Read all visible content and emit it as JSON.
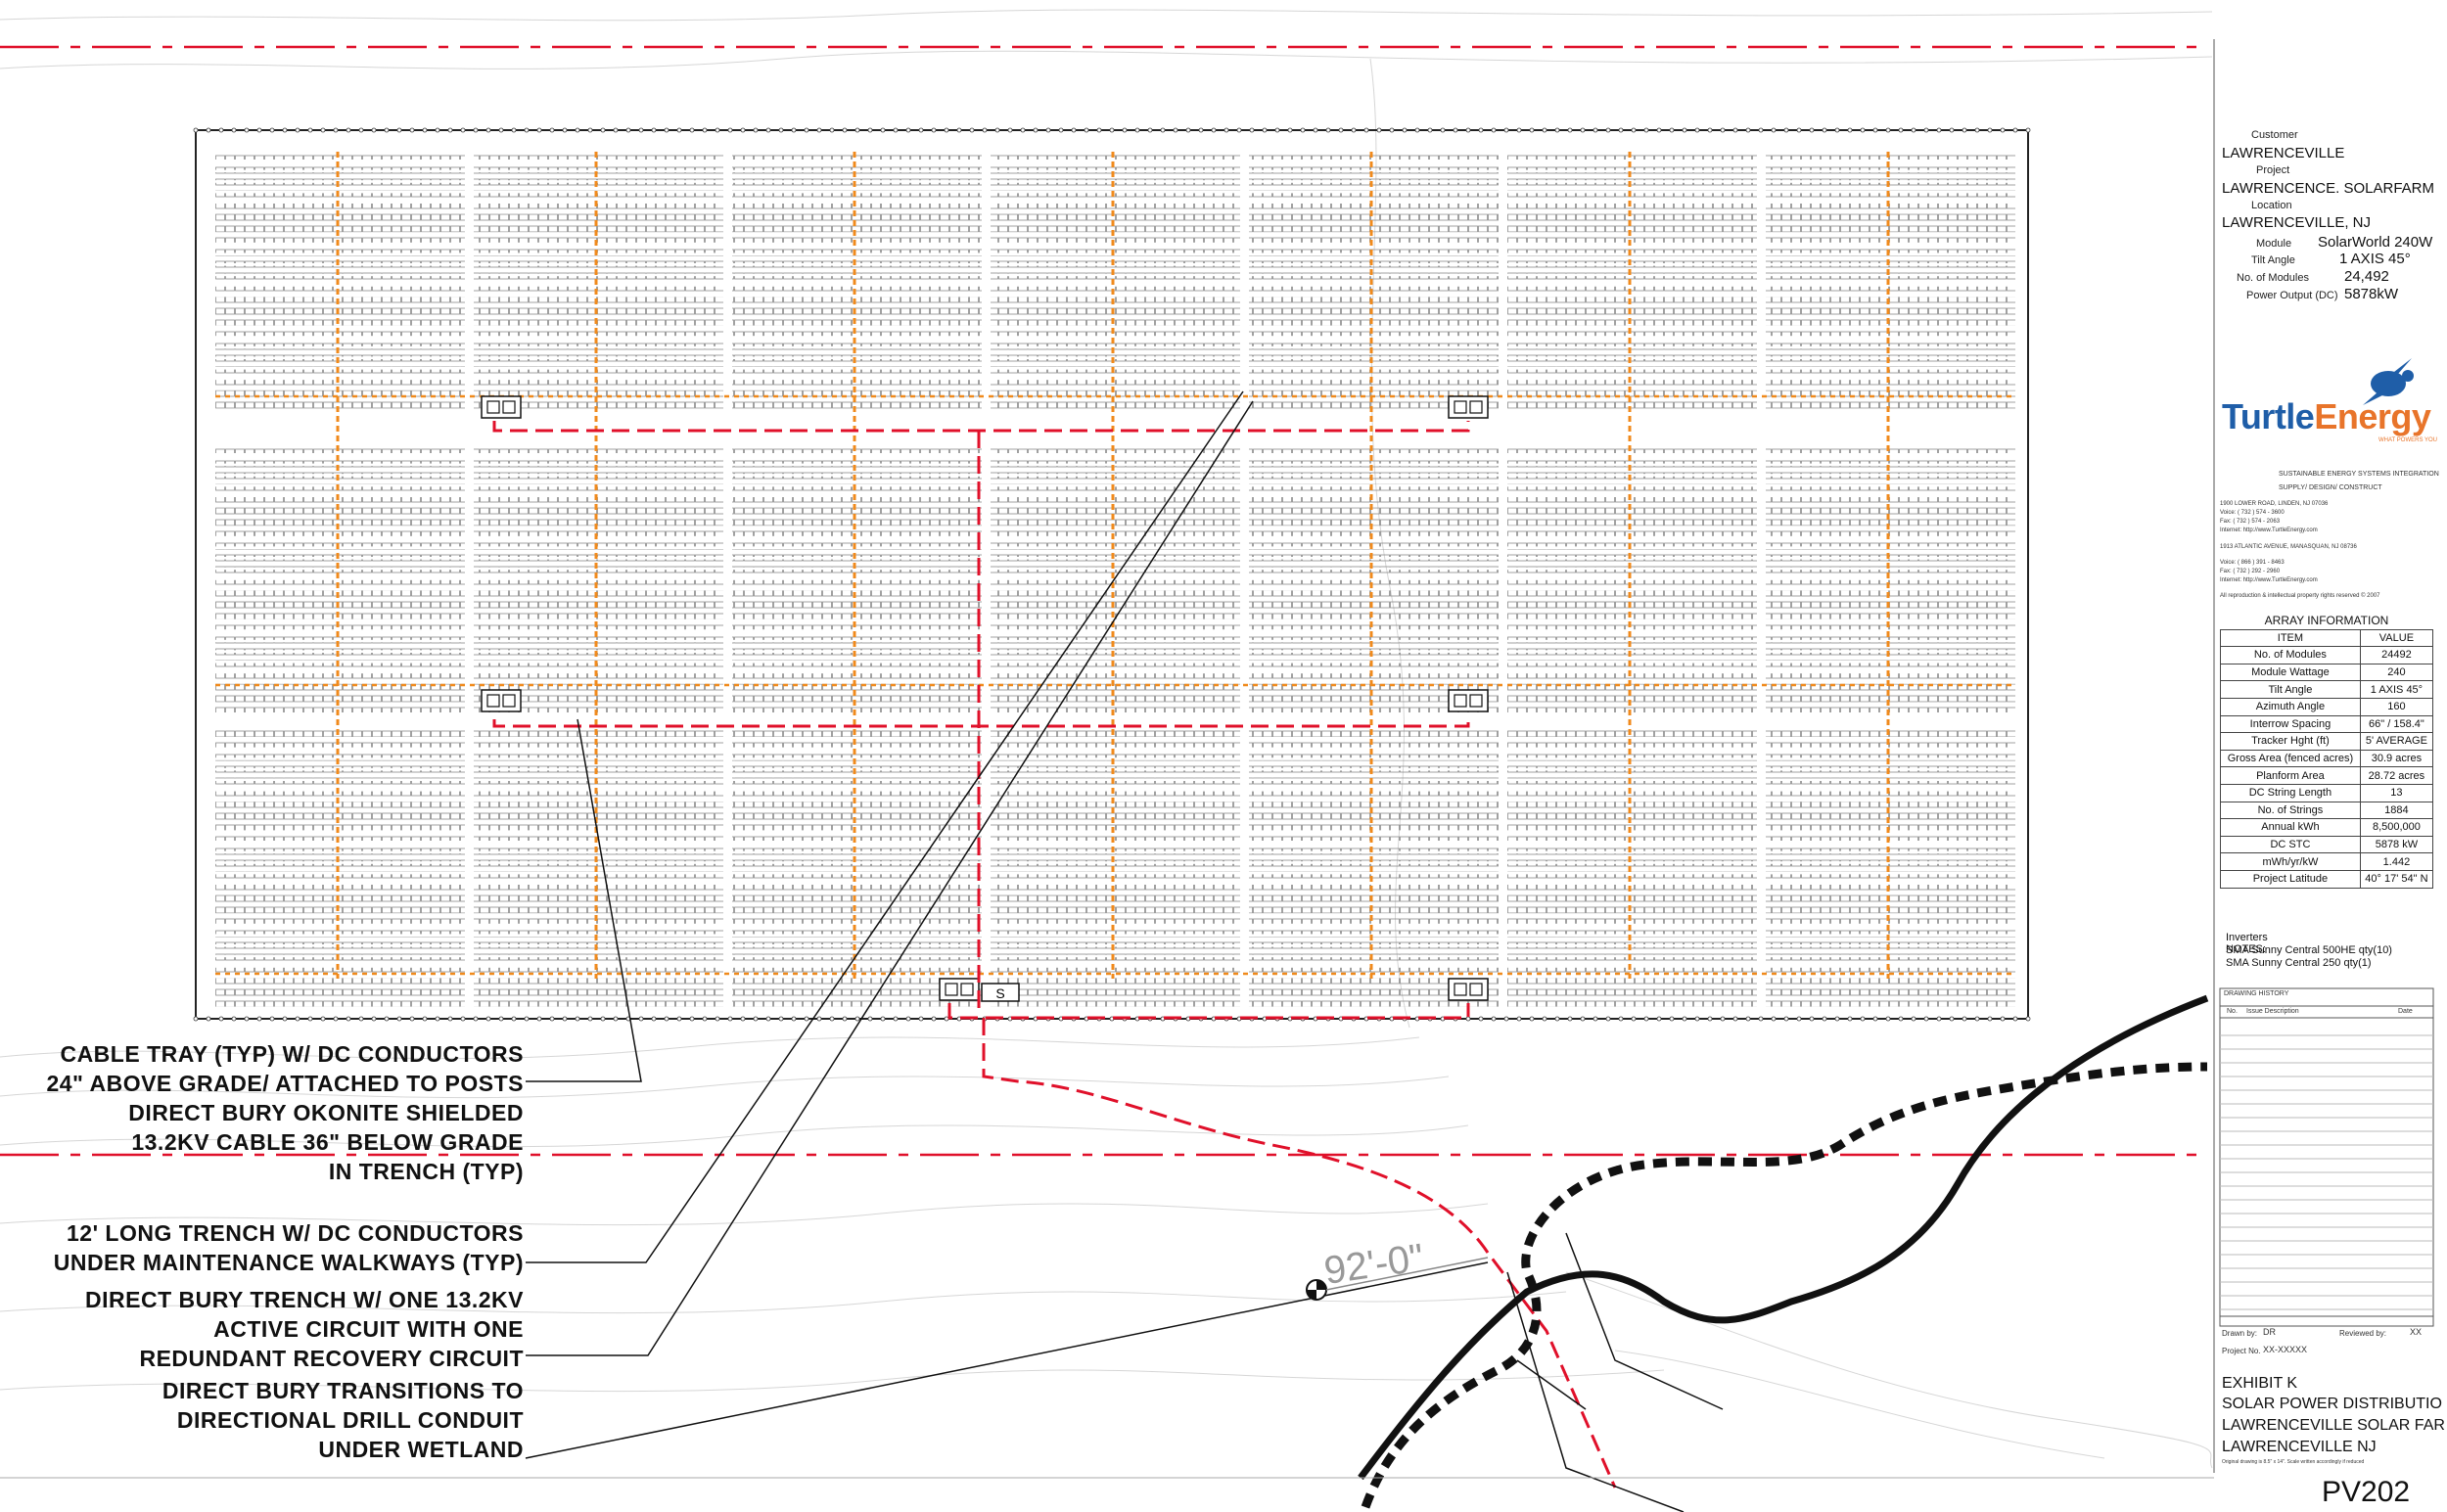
{
  "callouts": [
    [
      "CABLE TRAY (TYP) W/ DC CONDUCTORS",
      "24\" ABOVE GRADE/ ATTACHED TO POSTS",
      "DIRECT BURY OKONITE SHIELDED",
      "13.2KV CABLE 36\" BELOW GRADE",
      "IN TRENCH (TYP)"
    ],
    [
      "12' LONG TRENCH W/ DC CONDUCTORS",
      "UNDER MAINTENANCE WALKWAYS (TYP)"
    ],
    [
      "DIRECT BURY TRENCH W/ ONE 13.2KV",
      "ACTIVE CIRCUIT WITH ONE",
      "REDUNDANT RECOVERY CIRCUIT"
    ],
    [
      "DIRECT BURY TRANSITIONS TO",
      "DIRECTIONAL DRILL CONDUIT",
      "UNDER WETLAND"
    ]
  ],
  "dimension_label": "92'-0\"",
  "switchgear_label": "S",
  "title_block": {
    "customer_label": "Customer",
    "customer": "LAWRENCEVILLE",
    "project_label": "Project",
    "project": "LAWRENCENCE. SOLARFARM",
    "location_label": "Location",
    "location": "LAWRENCEVILLE, NJ",
    "module_label": "Module",
    "module": "SolarWorld 240W",
    "tilt_label": "Tilt Angle",
    "tilt": "1 AXIS 45°",
    "modules_label": "No. of Modules",
    "modules": "24,492",
    "power_label": "Power Output (DC)",
    "power": "5878kW",
    "company_name_1": "Turtle",
    "company_name_2": "Energy",
    "tagline": "WHAT POWERS YOU",
    "services_1": "SUSTAINABLE ENERGY SYSTEMS INTEGRATION",
    "services_2": "SUPPLY/ DESIGN/ CONSTRUCT",
    "address_1": "1900 LOWER ROAD, LINDEN, NJ 07036",
    "voice_1": "Voice:     ( 732 ) 574 - 3600",
    "fax_1": "Fax:        ( 732 ) 574 - 2063",
    "internet_1": "Internet:    http://www.TurtleEnergy.com",
    "address_2": "1913 ATLANTIC AVENUE, MANASQUAN, NJ 08736",
    "voice_2": "Voice:     ( 866 ) 391 - 8463",
    "fax_2": "Fax:        ( 732 ) 292 - 2960",
    "internet_2": "Internet:    http://www.TurtleEnergy.com",
    "rights": "All reproduction & intellectual property rights reserved © 2007",
    "array_info_title": "ARRAY INFORMATION",
    "array_info_header": [
      "ITEM",
      "VALUE"
    ],
    "array_info_rows": [
      [
        "No. of Modules",
        "24492"
      ],
      [
        "Module Wattage",
        "240"
      ],
      [
        "Tilt Angle",
        "1 AXIS 45°"
      ],
      [
        "Azimuth Angle",
        "160"
      ],
      [
        "Interrow Spacing",
        "66\" / 158.4\""
      ],
      [
        "Tracker Hght (ft)",
        "5' AVERAGE"
      ],
      [
        "Gross Area (fenced acres)",
        "30.9 acres"
      ],
      [
        "Planform Area",
        "28.72 acres"
      ],
      [
        "DC String Length",
        "13"
      ],
      [
        "No. of Strings",
        "1884"
      ],
      [
        "Annual kWh",
        "8,500,000"
      ],
      [
        "DC STC",
        "5878 kW"
      ],
      [
        "mWh/yr/kW",
        "1.442"
      ],
      [
        "Project Latitude",
        "40° 17' 54\" N"
      ]
    ],
    "notes_label": "NOTES:",
    "inverters_label": "Inverters",
    "inverter_1": "SMA Sunny Central 500HE qty(10)",
    "inverter_2": "SMA Sunny Central 250 qty(1)",
    "drawing_history_label": "DRAWING HISTORY",
    "history_no": "No.",
    "history_issue": "Issue Description",
    "history_date": "Date",
    "drawn_by_label": "Drawn by:",
    "drawn_by": "DR",
    "reviewed_by_label": "Reviewed by:",
    "reviewed_by": "XX",
    "project_no_label": "Project No.",
    "project_no": "XX-XXXXX",
    "exhibit": "EXHIBIT K",
    "sheet_title_1": "SOLAR POWER DISTRIBUTIO",
    "sheet_title_2": "LAWRENCEVILLE SOLAR FAR",
    "sheet_title_3": "LAWRENCEVILLE NJ",
    "scale_note": "Original drawing is 8.5\" x 14\". Scale written accordingly if reduced",
    "sheet_number": "PV202"
  },
  "colors": {
    "cable_red": "#e0102a",
    "tray_orange": "#f08a1c",
    "module_grey": "#8a8a8a",
    "ink": "#111111",
    "logo_blue": "#1f5ea8",
    "logo_orange": "#e8742a"
  }
}
